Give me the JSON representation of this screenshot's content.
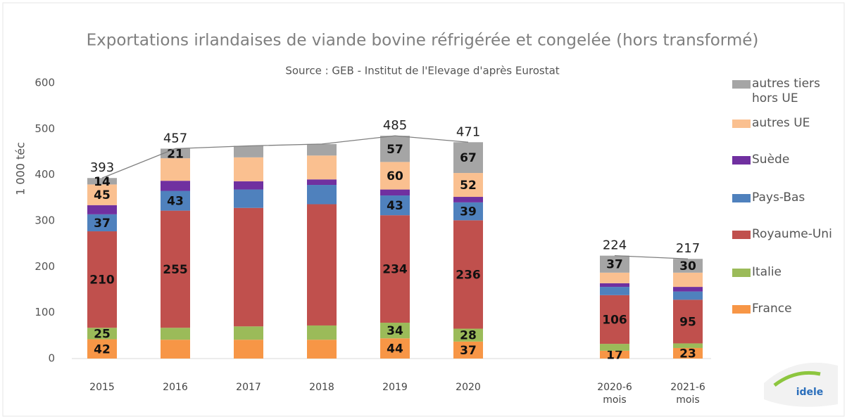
{
  "chart_data": {
    "type": "bar",
    "title": "Exportations irlandaises de viande bovine réfrigérée et congelée (hors transformé)",
    "subtitle": "Source :  GEB - Institut de l'Elevage d'après Eurostat",
    "y_label": "1 000 téc",
    "logo": "idele",
    "stacked": true,
    "categories": [
      "2015",
      "2016",
      "2017",
      "2018",
      "2019",
      "2020",
      null,
      "2020-6 mois",
      "2021-6 mois"
    ],
    "ylim": [
      0,
      600
    ],
    "yticks": [
      0,
      100,
      200,
      300,
      400,
      500,
      600
    ],
    "grid": false,
    "series": [
      {
        "name": "France",
        "color": "#f79646",
        "values": [
          42,
          41,
          41,
          41,
          44,
          37,
          null,
          17,
          23
        ],
        "value_labels": [
          "42",
          null,
          null,
          null,
          "44",
          "37",
          null,
          "17",
          "23"
        ]
      },
      {
        "name": "Italie",
        "color": "#9bbb59",
        "values": [
          25,
          26,
          29,
          31,
          34,
          28,
          null,
          15,
          10
        ],
        "value_labels": [
          "25",
          null,
          null,
          null,
          "34",
          "28",
          null,
          null,
          null
        ]
      },
      {
        "name": "Royaume-Uni",
        "color": "#c0504d",
        "values": [
          210,
          255,
          258,
          264,
          234,
          236,
          null,
          106,
          95
        ],
        "value_labels": [
          "210",
          "255",
          null,
          null,
          "234",
          "236",
          null,
          "106",
          "95"
        ]
      },
      {
        "name": "Pays-Bas",
        "color": "#4f81bd",
        "values": [
          37,
          43,
          40,
          42,
          43,
          39,
          null,
          18,
          18
        ],
        "value_labels": [
          "37",
          "43",
          null,
          null,
          "43",
          "39",
          null,
          null,
          null
        ]
      },
      {
        "name": "Suède",
        "color": "#7030a0",
        "values": [
          20,
          22,
          18,
          12,
          13,
          12,
          null,
          8,
          10
        ],
        "value_labels": [
          null,
          null,
          null,
          null,
          null,
          null,
          null,
          null,
          null
        ]
      },
      {
        "name": "autres UE",
        "color": "#fac090",
        "values": [
          45,
          49,
          52,
          52,
          60,
          52,
          null,
          23,
          31
        ],
        "value_labels": [
          "45",
          null,
          null,
          null,
          "60",
          "52",
          null,
          null,
          null
        ]
      },
      {
        "name": "autres tiers hors UE",
        "color": "#a5a5a5",
        "values": [
          14,
          21,
          25,
          25,
          57,
          67,
          null,
          37,
          30
        ],
        "value_labels": [
          "14",
          "21",
          null,
          null,
          "57",
          "67",
          null,
          "37",
          "30"
        ]
      }
    ],
    "totals": {
      "color": "#7f7f7f",
      "values": [
        393,
        457,
        463,
        467,
        485,
        471,
        null,
        224,
        217
      ],
      "value_labels": [
        "393",
        "457",
        null,
        null,
        "485",
        "471",
        null,
        "224",
        "217"
      ]
    }
  }
}
